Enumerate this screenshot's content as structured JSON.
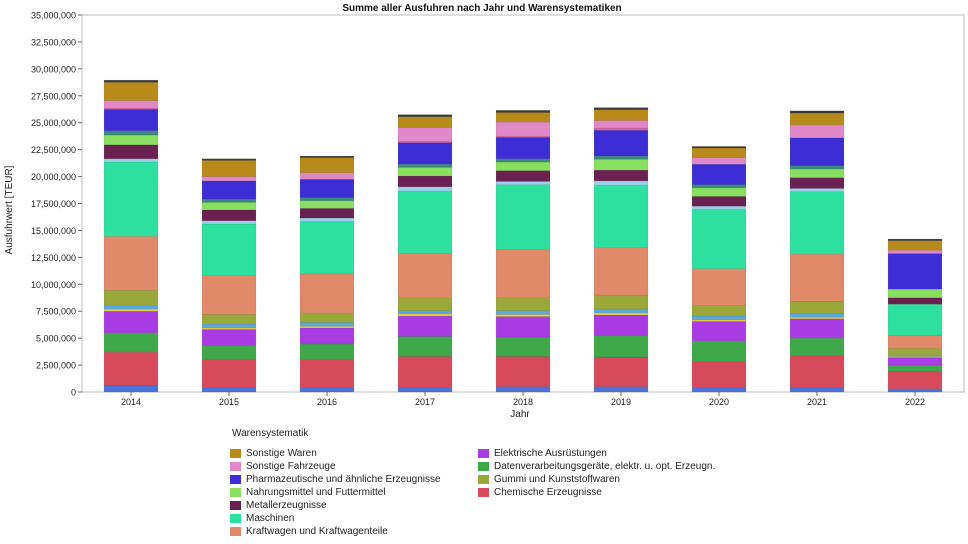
{
  "chart_data": {
    "type": "bar",
    "stacked": true,
    "title": "Summe aller Ausfuhren nach Jahr und Warensystematiken",
    "xlabel": "Jahr",
    "ylabel": "Ausfuhrwert [TEUR]",
    "ylim": [
      0,
      35000000
    ],
    "yticks": [
      0,
      2500000,
      5000000,
      7500000,
      10000000,
      12500000,
      15000000,
      17500000,
      20000000,
      22500000,
      25000000,
      27500000,
      30000000,
      32500000,
      35000000
    ],
    "ytick_labels": [
      "0",
      "2,500,000",
      "5,000,000",
      "7,500,000",
      "10,000,000",
      "12,500,000",
      "15,000,000",
      "17,500,000",
      "20,000,000",
      "22,500,000",
      "25,000,000",
      "27,500,000",
      "30,000,000",
      "32,500,000",
      "35,000,000"
    ],
    "categories": [
      "2014",
      "2015",
      "2016",
      "2017",
      "2018",
      "2019",
      "2020",
      "2021",
      "2022"
    ],
    "series": [
      {
        "name": "",
        "color": "#4a72d8",
        "values": [
          600000,
          450000,
          450000,
          450000,
          500000,
          500000,
          400000,
          400000,
          300000
        ]
      },
      {
        "name": "Chemische Erzeugnisse",
        "color": "#d64a5c",
        "values": [
          3100000,
          2600000,
          2600000,
          2850000,
          2800000,
          2750000,
          2450000,
          3000000,
          1600000
        ]
      },
      {
        "name": "Datenverarbeitungsgeräte, elektr. u. opt. Erzeugn.",
        "color": "#3ea84a",
        "values": [
          1800000,
          1250000,
          1400000,
          1850000,
          1800000,
          2000000,
          1900000,
          1600000,
          600000
        ]
      },
      {
        "name": "Elektrische Ausrüstungen",
        "color": "#a93de3",
        "values": [
          2000000,
          1500000,
          1500000,
          1900000,
          1900000,
          1900000,
          1800000,
          1800000,
          700000
        ]
      },
      {
        "name": "",
        "color": "#e8d23a",
        "values": [
          200000,
          150000,
          150000,
          200000,
          200000,
          200000,
          150000,
          150000,
          100000
        ]
      },
      {
        "name": "",
        "color": "#5aa8e0",
        "values": [
          350000,
          350000,
          350000,
          300000,
          350000,
          350000,
          350000,
          350000,
          150000
        ]
      },
      {
        "name": "Gummi und Kunststoffwaren",
        "color": "#9aa83a",
        "values": [
          1400000,
          900000,
          900000,
          1200000,
          1200000,
          1300000,
          1000000,
          1100000,
          600000
        ]
      },
      {
        "name": "Kraftwagen und Kraftwagenteile",
        "color": "#e08a6a",
        "values": [
          5000000,
          3600000,
          3600000,
          4100000,
          4500000,
          4400000,
          3400000,
          4400000,
          1200000
        ]
      },
      {
        "name": "Maschinen",
        "color": "#2ee0a0",
        "values": [
          6900000,
          4800000,
          4900000,
          5800000,
          6000000,
          5800000,
          5500000,
          5800000,
          2900000
        ]
      },
      {
        "name": "",
        "color": "#9ad0e8",
        "values": [
          300000,
          300000,
          300000,
          400000,
          300000,
          400000,
          300000,
          300000,
          0
        ]
      },
      {
        "name": "Metallerzeugnisse",
        "color": "#6a2050",
        "values": [
          1300000,
          1000000,
          900000,
          1000000,
          1000000,
          1000000,
          900000,
          1000000,
          600000
        ]
      },
      {
        "name": "Nahrungsmittel und Futtermittel",
        "color": "#88e060",
        "values": [
          900000,
          700000,
          700000,
          800000,
          800000,
          1000000,
          800000,
          800000,
          800000
        ]
      },
      {
        "name": "",
        "color": "#3a8a7a",
        "values": [
          400000,
          300000,
          300000,
          300000,
          300000,
          300000,
          300000,
          300000,
          0
        ]
      },
      {
        "name": "Pharmazeutische und ähnliche Erzeugnisse",
        "color": "#3c2ed4",
        "values": [
          2000000,
          1700000,
          1700000,
          2000000,
          2000000,
          2400000,
          1900000,
          2600000,
          3300000
        ]
      },
      {
        "name": "",
        "color": "#e05aa0",
        "values": [
          100000,
          0,
          0,
          100000,
          100000,
          200000,
          0,
          0,
          0
        ]
      },
      {
        "name": "Sonstige Fahrzeuge",
        "color": "#e088c8",
        "values": [
          700000,
          400000,
          600000,
          1300000,
          1300000,
          700000,
          600000,
          1200000,
          300000
        ]
      },
      {
        "name": "Sonstige Waren",
        "color": "#b88a1a",
        "values": [
          1700000,
          1500000,
          1400000,
          1000000,
          900000,
          1000000,
          900000,
          1100000,
          900000
        ]
      },
      {
        "name": "",
        "color": "#3a3a3a",
        "values": [
          200000,
          150000,
          150000,
          200000,
          200000,
          200000,
          150000,
          200000,
          150000
        ]
      }
    ],
    "legend_title": "Warensystematik",
    "legend_placement": "bottom",
    "grid": false
  },
  "legend": {
    "title": "Warensystematik",
    "items": [
      {
        "label": "Sonstige Waren",
        "color": "#b88a1a"
      },
      {
        "label": "Sonstige Fahrzeuge",
        "color": "#e088c8"
      },
      {
        "label": "Pharmazeutische und ähnliche Erzeugnisse",
        "color": "#3c2ed4"
      },
      {
        "label": "Nahrungsmittel und Futtermittel",
        "color": "#88e060"
      },
      {
        "label": "Metallerzeugnisse",
        "color": "#6a2050"
      },
      {
        "label": "Maschinen",
        "color": "#2ee0a0"
      },
      {
        "label": "Kraftwagen und Kraftwagenteile",
        "color": "#e08a6a"
      },
      {
        "label": "Elektrische Ausrüstungen",
        "color": "#a93de3"
      },
      {
        "label": "Datenverarbeitungsgeräte, elektr. u. opt. Erzeugn.",
        "color": "#3ea84a"
      },
      {
        "label": "Gummi und Kunststoffwaren",
        "color": "#9aa83a"
      },
      {
        "label": "Chemische Erzeugnisse",
        "color": "#d64a5c"
      }
    ]
  }
}
